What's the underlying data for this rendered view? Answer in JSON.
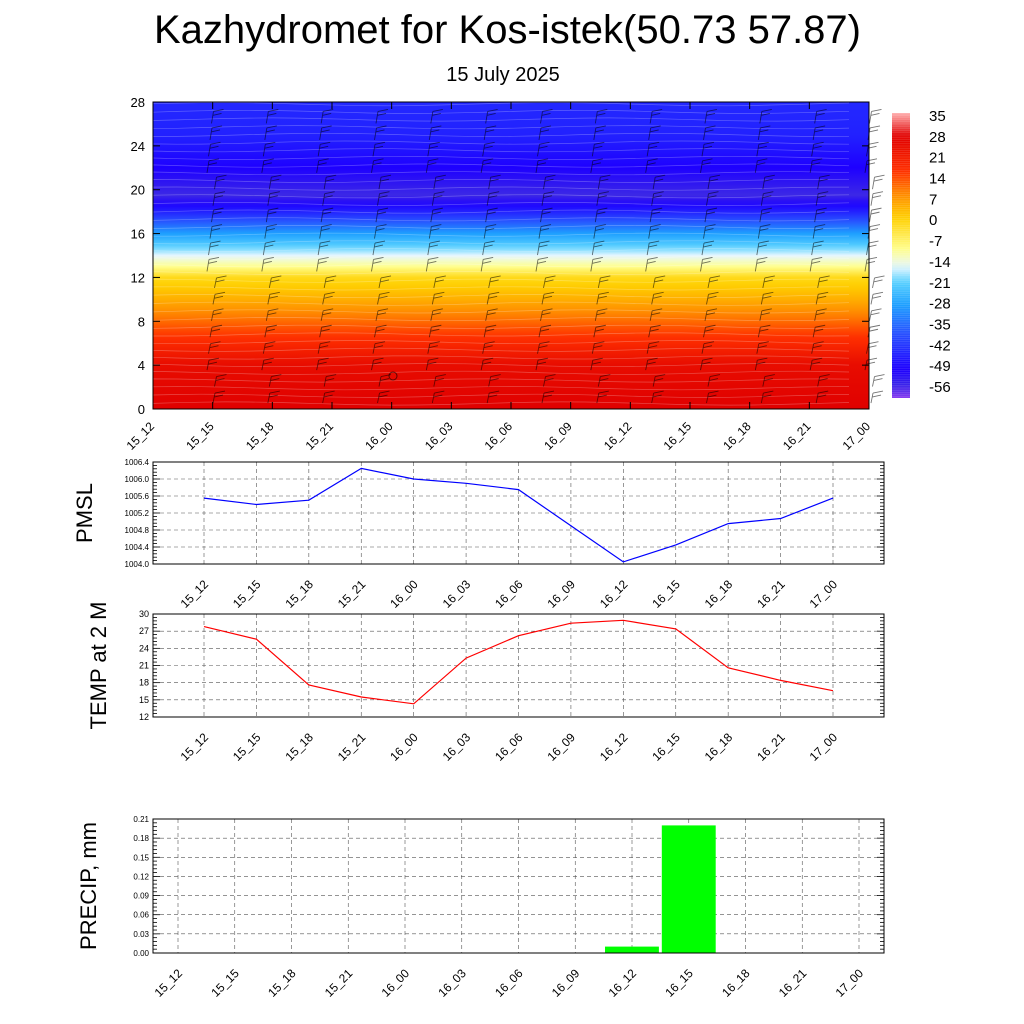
{
  "title": "Kazhydromet for Kos-istek(50.73 57.87)",
  "subtitle": "15 July 2025",
  "colors": {
    "pmsl_line": "#0000ff",
    "temp_line": "#ff0000",
    "precip_bar": "#00ff00",
    "grid": "#000000"
  },
  "chart_data": [
    {
      "type": "heatmap",
      "name_ref": "cross-section",
      "x": [
        "15_12",
        "15_15",
        "15_18",
        "15_21",
        "16_00",
        "16_03",
        "16_06",
        "16_09",
        "16_12",
        "16_15",
        "16_18",
        "16_21",
        "17_00"
      ],
      "yticks": [
        0,
        4,
        8,
        12,
        16,
        20,
        24,
        28
      ],
      "ylim": [
        0,
        28
      ],
      "colorbar": {
        "ticks": [
          35,
          28,
          21,
          14,
          7,
          0,
          -7,
          -14,
          -21,
          -28,
          -35,
          -42,
          -49,
          -56
        ],
        "range": [
          -60,
          38
        ],
        "stops": [
          {
            "v": 38,
            "c": "#ffb0b0"
          },
          {
            "v": 30,
            "c": "#e00000"
          },
          {
            "v": 18,
            "c": "#ff3000"
          },
          {
            "v": 10,
            "c": "#ff8c00"
          },
          {
            "v": 2,
            "c": "#ffd000"
          },
          {
            "v": -9,
            "c": "#ffff90"
          },
          {
            "v": -15,
            "c": "#e6f6ff"
          },
          {
            "v": -20,
            "c": "#5ad2ff"
          },
          {
            "v": -28,
            "c": "#1ea0ff"
          },
          {
            "v": -38,
            "c": "#2850ff"
          },
          {
            "v": -50,
            "c": "#1e00ff"
          },
          {
            "v": -56,
            "c": "#3c28e6"
          },
          {
            "v": -60,
            "c": "#8a3cf0"
          }
        ]
      },
      "temperature_profile": [
        {
          "level": 0,
          "t": 30
        },
        {
          "level": 4,
          "t": 27
        },
        {
          "level": 6,
          "t": 20
        },
        {
          "level": 8,
          "t": 13
        },
        {
          "level": 10,
          "t": 6
        },
        {
          "level": 12,
          "t": 0
        },
        {
          "level": 13,
          "t": -9
        },
        {
          "level": 14,
          "t": -15
        },
        {
          "level": 16,
          "t": -28
        },
        {
          "level": 18,
          "t": -45
        },
        {
          "level": 19.5,
          "t": -56
        },
        {
          "level": 22,
          "t": -50
        },
        {
          "level": 25,
          "t": -45
        },
        {
          "level": 28,
          "t": -44
        }
      ]
    },
    {
      "type": "line",
      "ylabel": "PMSL",
      "x": [
        "15_12",
        "15_15",
        "15_18",
        "15_21",
        "16_00",
        "16_03",
        "16_06",
        "16_09",
        "16_12",
        "16_15",
        "16_18",
        "16_21",
        "17_00"
      ],
      "series": [
        {
          "values": [
            1005.55,
            1005.4,
            1005.5,
            1006.25,
            1006.0,
            1005.9,
            1005.75,
            1004.9,
            1004.05,
            1004.45,
            1004.95,
            1005.07,
            1005.55
          ]
        }
      ],
      "yticks": [
        "1004.0",
        "1004.4",
        "1004.8",
        "1005.2",
        "1005.6",
        "1006.0",
        "1006.4"
      ],
      "ylim": [
        1004.0,
        1006.4
      ]
    },
    {
      "type": "line",
      "ylabel": "TEMP at 2 M",
      "x": [
        "15_12",
        "15_15",
        "15_18",
        "15_21",
        "16_00",
        "16_03",
        "16_06",
        "16_09",
        "16_12",
        "16_15",
        "16_18",
        "16_21",
        "17_00"
      ],
      "series": [
        {
          "values": [
            27.8,
            25.6,
            17.6,
            15.5,
            14.3,
            22.3,
            26.2,
            28.4,
            28.9,
            27.4,
            20.6,
            18.4,
            16.6
          ]
        }
      ],
      "yticks": [
        "12",
        "15",
        "18",
        "21",
        "24",
        "27",
        "30"
      ],
      "ylim": [
        12,
        30
      ]
    },
    {
      "type": "bar",
      "ylabel": "PRECIP, mm",
      "x": [
        "15_12",
        "15_15",
        "15_18",
        "15_21",
        "16_00",
        "16_03",
        "16_06",
        "16_09",
        "16_12",
        "16_15",
        "16_18",
        "16_21",
        "17_00"
      ],
      "values": [
        0,
        0,
        0,
        0,
        0,
        0,
        0,
        0,
        0.01,
        0.2,
        0,
        0,
        0
      ],
      "yticks": [
        "0.00",
        "0.03",
        "0.06",
        "0.09",
        "0.12",
        "0.15",
        "0.18",
        "0.21"
      ],
      "ylim": [
        0,
        0.21
      ]
    }
  ]
}
